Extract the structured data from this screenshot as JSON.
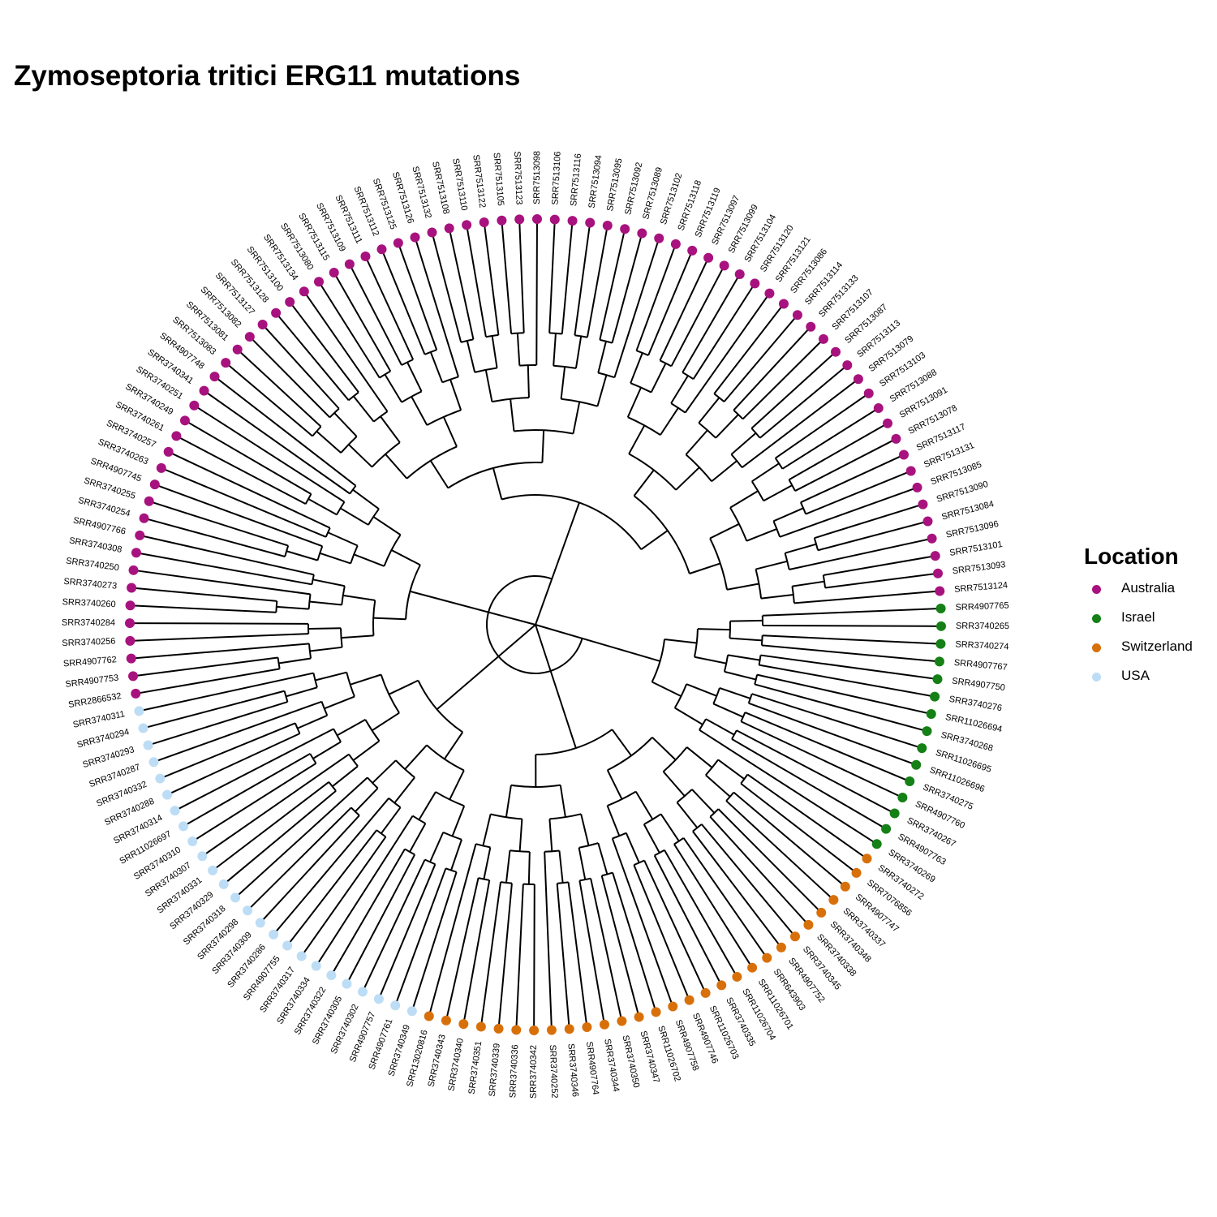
{
  "title": "Zymoseptoria tritici ERG11 mutations",
  "legend": {
    "title": "Location",
    "items": [
      {
        "label": "Australia",
        "color": "#A8127E"
      },
      {
        "label": "Israel",
        "color": "#158015"
      },
      {
        "label": "Switzerland",
        "color": "#D8700A"
      },
      {
        "label": "USA",
        "color": "#BCDDF5"
      }
    ]
  },
  "tree": {
    "layout": "circular",
    "tips_clockwise_from_right": [
      {
        "label": "SRR4907765",
        "location": "Israel"
      },
      {
        "label": "SRR3740265",
        "location": "Israel"
      },
      {
        "label": "SRR3740274",
        "location": "Israel"
      },
      {
        "label": "SRR4907767",
        "location": "Israel"
      },
      {
        "label": "SRR4907750",
        "location": "Israel"
      },
      {
        "label": "SRR3740276",
        "location": "Israel"
      },
      {
        "label": "SRR11026694",
        "location": "Israel"
      },
      {
        "label": "SRR3740268",
        "location": "Israel"
      },
      {
        "label": "SRR11026695",
        "location": "Israel"
      },
      {
        "label": "SRR11026696",
        "location": "Israel"
      },
      {
        "label": "SRR3740275",
        "location": "Israel"
      },
      {
        "label": "SRR4907760",
        "location": "Israel"
      },
      {
        "label": "SRR3740267",
        "location": "Israel"
      },
      {
        "label": "SRR4907763",
        "location": "Israel"
      },
      {
        "label": "SRR3740269",
        "location": "Israel"
      },
      {
        "label": "SRR3740272",
        "location": "Switzerland"
      },
      {
        "label": "SRR7076856",
        "location": "Switzerland"
      },
      {
        "label": "SRR4907747",
        "location": "Switzerland"
      },
      {
        "label": "SRR3740337",
        "location": "Switzerland"
      },
      {
        "label": "SRR3740348",
        "location": "Switzerland"
      },
      {
        "label": "SRR3740338",
        "location": "Switzerland"
      },
      {
        "label": "SRR3740345",
        "location": "Switzerland"
      },
      {
        "label": "SRR4907752",
        "location": "Switzerland"
      },
      {
        "label": "SRR643903",
        "location": "Switzerland"
      },
      {
        "label": "SRR11026701",
        "location": "Switzerland"
      },
      {
        "label": "SRR11026704",
        "location": "Switzerland"
      },
      {
        "label": "SRR3740335",
        "location": "Switzerland"
      },
      {
        "label": "SRR11026703",
        "location": "Switzerland"
      },
      {
        "label": "SRR4907746",
        "location": "Switzerland"
      },
      {
        "label": "SRR4907758",
        "location": "Switzerland"
      },
      {
        "label": "SRR11026702",
        "location": "Switzerland"
      },
      {
        "label": "SRR3740347",
        "location": "Switzerland"
      },
      {
        "label": "SRR3740350",
        "location": "Switzerland"
      },
      {
        "label": "SRR3740344",
        "location": "Switzerland"
      },
      {
        "label": "SRR4907764",
        "location": "Switzerland"
      },
      {
        "label": "SRR3740346",
        "location": "Switzerland"
      },
      {
        "label": "SRR3740252",
        "location": "Switzerland"
      },
      {
        "label": "SRR3740342",
        "location": "Switzerland"
      },
      {
        "label": "SRR3740336",
        "location": "Switzerland"
      },
      {
        "label": "SRR3740339",
        "location": "Switzerland"
      },
      {
        "label": "SRR3740351",
        "location": "Switzerland"
      },
      {
        "label": "SRR3740340",
        "location": "Switzerland"
      },
      {
        "label": "SRR3740343",
        "location": "Switzerland"
      },
      {
        "label": "SRR13020816",
        "location": "Switzerland"
      },
      {
        "label": "SRR3740349",
        "location": "USA"
      },
      {
        "label": "SRR4907761",
        "location": "USA"
      },
      {
        "label": "SRR4907757",
        "location": "USA"
      },
      {
        "label": "SRR3740302",
        "location": "USA"
      },
      {
        "label": "SRR3740305",
        "location": "USA"
      },
      {
        "label": "SRR3740322",
        "location": "USA"
      },
      {
        "label": "SRR3740334",
        "location": "USA"
      },
      {
        "label": "SRR3740317",
        "location": "USA"
      },
      {
        "label": "SRR4907755",
        "location": "USA"
      },
      {
        "label": "SRR3740286",
        "location": "USA"
      },
      {
        "label": "SRR3740309",
        "location": "USA"
      },
      {
        "label": "SRR3740298",
        "location": "USA"
      },
      {
        "label": "SRR3740318",
        "location": "USA"
      },
      {
        "label": "SRR3740329",
        "location": "USA"
      },
      {
        "label": "SRR3740331",
        "location": "USA"
      },
      {
        "label": "SRR3740307",
        "location": "USA"
      },
      {
        "label": "SRR3740310",
        "location": "USA"
      },
      {
        "label": "SRR11026697",
        "location": "USA"
      },
      {
        "label": "SRR3740314",
        "location": "USA"
      },
      {
        "label": "SRR3740288",
        "location": "USA"
      },
      {
        "label": "SRR3740332",
        "location": "USA"
      },
      {
        "label": "SRR3740287",
        "location": "USA"
      },
      {
        "label": "SRR3740293",
        "location": "USA"
      },
      {
        "label": "SRR3740294",
        "location": "USA"
      },
      {
        "label": "SRR3740311",
        "location": "USA"
      },
      {
        "label": "SRR2866532",
        "location": "Australia"
      },
      {
        "label": "SRR4907753",
        "location": "Australia"
      },
      {
        "label": "SRR4907762",
        "location": "Australia"
      },
      {
        "label": "SRR3740256",
        "location": "Australia"
      },
      {
        "label": "SRR3740284",
        "location": "Australia"
      },
      {
        "label": "SRR3740260",
        "location": "Australia"
      },
      {
        "label": "SRR3740273",
        "location": "Australia"
      },
      {
        "label": "SRR3740250",
        "location": "Australia"
      },
      {
        "label": "SRR3740308",
        "location": "Australia"
      },
      {
        "label": "SRR4907766",
        "location": "Australia"
      },
      {
        "label": "SRR3740254",
        "location": "Australia"
      },
      {
        "label": "SRR3740255",
        "location": "Australia"
      },
      {
        "label": "SRR4907745",
        "location": "Australia"
      },
      {
        "label": "SRR3740263",
        "location": "Australia"
      },
      {
        "label": "SRR3740257",
        "location": "Australia"
      },
      {
        "label": "SRR3740261",
        "location": "Australia"
      },
      {
        "label": "SRR3740249",
        "location": "Australia"
      },
      {
        "label": "SRR3740251",
        "location": "Australia"
      },
      {
        "label": "SRR3740341",
        "location": "Australia"
      },
      {
        "label": "SRR4907748",
        "location": "Australia"
      },
      {
        "label": "SRR7513083",
        "location": "Australia"
      },
      {
        "label": "SRR7513081",
        "location": "Australia"
      },
      {
        "label": "SRR7513082",
        "location": "Australia"
      },
      {
        "label": "SRR7513127",
        "location": "Australia"
      },
      {
        "label": "SRR7513128",
        "location": "Australia"
      },
      {
        "label": "SRR7513100",
        "location": "Australia"
      },
      {
        "label": "SRR7513134",
        "location": "Australia"
      },
      {
        "label": "SRR7513080",
        "location": "Australia"
      },
      {
        "label": "SRR7513115",
        "location": "Australia"
      },
      {
        "label": "SRR7513109",
        "location": "Australia"
      },
      {
        "label": "SRR7513111",
        "location": "Australia"
      },
      {
        "label": "SRR7513112",
        "location": "Australia"
      },
      {
        "label": "SRR7513125",
        "location": "Australia"
      },
      {
        "label": "SRR7513126",
        "location": "Australia"
      },
      {
        "label": "SRR7513132",
        "location": "Australia"
      },
      {
        "label": "SRR7513108",
        "location": "Australia"
      },
      {
        "label": "SRR7513110",
        "location": "Australia"
      },
      {
        "label": "SRR7513122",
        "location": "Australia"
      },
      {
        "label": "SRR7513105",
        "location": "Australia"
      },
      {
        "label": "SRR7513123",
        "location": "Australia"
      },
      {
        "label": "SRR7513098",
        "location": "Australia"
      },
      {
        "label": "SRR7513106",
        "location": "Australia"
      },
      {
        "label": "SRR7513116",
        "location": "Australia"
      },
      {
        "label": "SRR7513094",
        "location": "Australia"
      },
      {
        "label": "SRR7513095",
        "location": "Australia"
      },
      {
        "label": "SRR7513092",
        "location": "Australia"
      },
      {
        "label": "SRR7513089",
        "location": "Australia"
      },
      {
        "label": "SRR7513102",
        "location": "Australia"
      },
      {
        "label": "SRR7513118",
        "location": "Australia"
      },
      {
        "label": "SRR7513119",
        "location": "Australia"
      },
      {
        "label": "SRR7513097",
        "location": "Australia"
      },
      {
        "label": "SRR7513099",
        "location": "Australia"
      },
      {
        "label": "SRR7513104",
        "location": "Australia"
      },
      {
        "label": "SRR7513120",
        "location": "Australia"
      },
      {
        "label": "SRR7513121",
        "location": "Australia"
      },
      {
        "label": "SRR7513086",
        "location": "Australia"
      },
      {
        "label": "SRR7513114",
        "location": "Australia"
      },
      {
        "label": "SRR7513133",
        "location": "Australia"
      },
      {
        "label": "SRR7513107",
        "location": "Australia"
      },
      {
        "label": "SRR7513087",
        "location": "Australia"
      },
      {
        "label": "SRR7513113",
        "location": "Australia"
      },
      {
        "label": "SRR7513079",
        "location": "Australia"
      },
      {
        "label": "SRR7513103",
        "location": "Australia"
      },
      {
        "label": "SRR7513088",
        "location": "Australia"
      },
      {
        "label": "SRR7513091",
        "location": "Australia"
      },
      {
        "label": "SRR7513078",
        "location": "Australia"
      },
      {
        "label": "SRR7513117",
        "location": "Australia"
      },
      {
        "label": "SRR7513131",
        "location": "Australia"
      },
      {
        "label": "SRR7513085",
        "location": "Australia"
      },
      {
        "label": "SRR7513090",
        "location": "Australia"
      },
      {
        "label": "SRR7513084",
        "location": "Australia"
      },
      {
        "label": "SRR7513096",
        "location": "Australia"
      },
      {
        "label": "SRR7513101",
        "location": "Australia"
      },
      {
        "label": "SRR7513093",
        "location": "Australia"
      },
      {
        "label": "SRR7513124",
        "location": "Australia"
      }
    ]
  }
}
